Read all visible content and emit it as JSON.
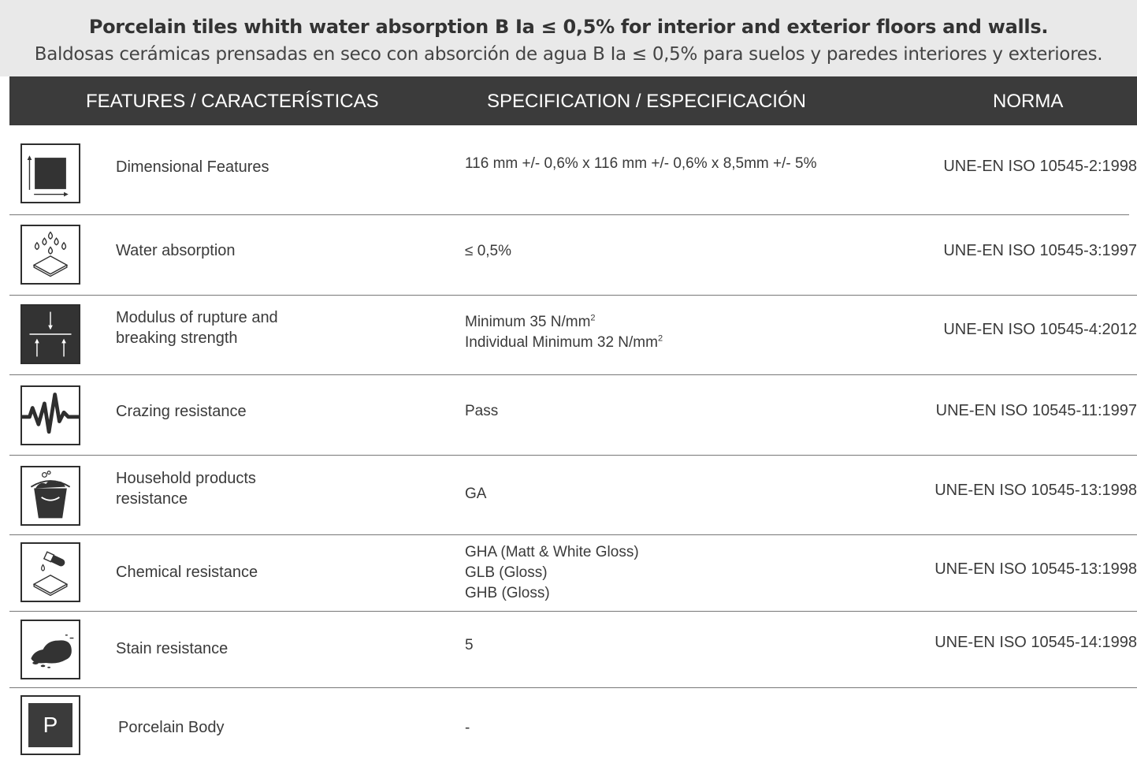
{
  "header": {
    "title_en": "Porcelain tiles whith water absorption B Ia ≤ 0,5% for interior and exterior floors and walls.",
    "title_es": "Baldosas cerámicas prensadas en seco con absorción de agua B Ia ≤ 0,5% para suelos y paredes interiores y exteriores."
  },
  "columns": {
    "features": "FEATURES / CARACTERÍSTICAS",
    "specification": "SPECIFICATION / ESPECIFICACIÓN",
    "norma": "NORMA"
  },
  "rows": [
    {
      "icon": "dimension-icon",
      "feature": "Dimensional Features",
      "spec": [
        "116 mm +/- 0,6% x 116 mm +/- 0,6% x 8,5mm +/- 5%"
      ],
      "norma": "UNE-EN ISO 10545-2:1998"
    },
    {
      "icon": "water-drops-icon",
      "feature": "Water absorption",
      "spec": [
        "≤ 0,5%"
      ],
      "norma": "UNE-EN ISO 10545-3:1997"
    },
    {
      "icon": "pressure-arrows-icon",
      "feature_lines": [
        "Modulus of rupture and",
        "breaking strength"
      ],
      "spec": [
        "Minimum 35 N/mm",
        "Individual Minimum 32 N/mm"
      ],
      "spec_sup": "2",
      "norma": "UNE-EN ISO 10545-4:2012"
    },
    {
      "icon": "pulse-icon",
      "feature": "Crazing resistance",
      "spec": [
        "Pass"
      ],
      "norma": "UNE-EN ISO 10545-11:1997"
    },
    {
      "icon": "bucket-icon",
      "feature_lines": [
        "Household products",
        "resistance"
      ],
      "spec": [
        "GA"
      ],
      "norma": "UNE-EN ISO 10545-13:1998"
    },
    {
      "icon": "chemical-icon",
      "feature": "Chemical resistance",
      "spec": [
        "GHA (Matt & White Gloss)",
        "GLB (Gloss)",
        "GHB (Gloss)"
      ],
      "norma": "UNE-EN ISO 10545-13:1998"
    },
    {
      "icon": "stain-icon",
      "feature": "Stain resistance",
      "spec": [
        "5"
      ],
      "norma": "UNE-EN ISO 10545-14:1998"
    },
    {
      "icon": "porcelain-p-icon",
      "icon_letter": "P",
      "feature": "Porcelain Body",
      "spec": [
        "-"
      ],
      "norma": ""
    }
  ]
}
